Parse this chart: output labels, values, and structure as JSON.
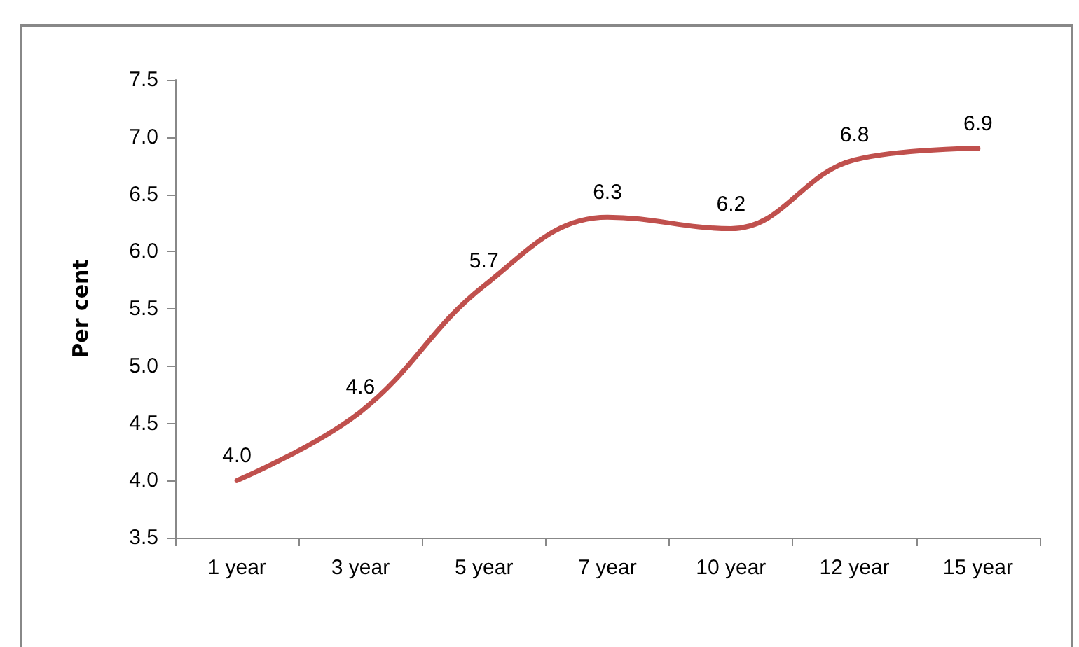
{
  "chart_data": {
    "type": "line",
    "ylabel": "Per cent",
    "categories": [
      "1 year",
      "3 year",
      "5 year",
      "7 year",
      "10 year",
      "12 year",
      "15 year"
    ],
    "series": [
      {
        "color": "#c0504d",
        "values": [
          4.0,
          4.6,
          5.7,
          6.3,
          6.2,
          6.8,
          6.9
        ],
        "value_labels": [
          "4.0",
          "4.6",
          "5.7",
          "6.3",
          "6.2",
          "6.8",
          "6.9"
        ]
      }
    ],
    "ylim": [
      3.5,
      7.5
    ],
    "yticks": [
      3.5,
      {
        "value": 4,
        "label": "4.0"
      },
      4.5,
      {
        "value": 5,
        "label": "5.0"
      },
      5.5,
      {
        "value": 6,
        "label": "6.0"
      },
      6.5,
      {
        "value": 7,
        "label": "7.0"
      },
      7.5
    ],
    "grid": false,
    "marker": "none",
    "line_style": "solid"
  }
}
